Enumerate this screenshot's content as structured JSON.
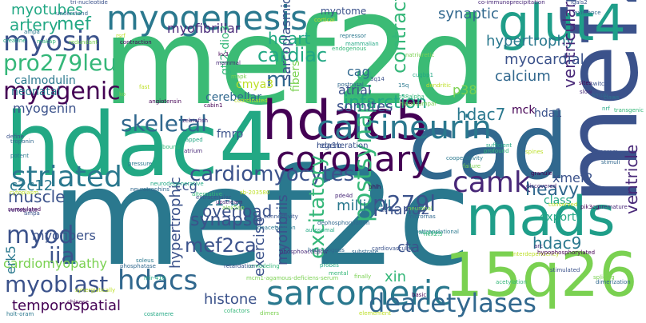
{
  "words": [
    {
      "text": "mef2d",
      "color": "#3bbb75"
    },
    {
      "text": "mef2c",
      "color": "#2a788e"
    },
    {
      "text": "mef2b",
      "color": "#3b528b"
    },
    {
      "text": "hdac4",
      "color": "#22a884"
    },
    {
      "text": "cad",
      "color": "#31688e"
    },
    {
      "text": "hdac5",
      "color": "#440154"
    },
    {
      "text": "myogenesis",
      "color": "#2a788e"
    },
    {
      "text": "glut4",
      "color": "#1f9e89"
    },
    {
      "text": "coronary",
      "color": "#440154"
    },
    {
      "text": "mads",
      "color": "#1f9e89"
    },
    {
      "text": "15q26",
      "color": "#7ad151"
    },
    {
      "text": "calcineurin",
      "color": "#2a788e"
    },
    {
      "text": "striated",
      "color": "#2a788e"
    },
    {
      "text": "sarcomeric",
      "color": "#2a788e"
    },
    {
      "text": "hdacs",
      "color": "#31688e"
    },
    {
      "text": "deacetylases",
      "color": "#31688e"
    },
    {
      "text": "camk",
      "color": "#482878"
    },
    {
      "text": "myosin",
      "color": "#3b528b"
    },
    {
      "text": "myogenic",
      "color": "#440154"
    },
    {
      "text": "skeletal",
      "color": "#31688e"
    },
    {
      "text": "myoblast",
      "color": "#3b528b"
    },
    {
      "text": "myod",
      "color": "#3b528b"
    },
    {
      "text": "iia",
      "color": "#3b528b"
    },
    {
      "text": "pro279leu",
      "color": "#35b779"
    },
    {
      "text": "cardiomyocytes",
      "color": "#3b528b"
    },
    {
      "text": "postsynaptic",
      "color": "#35b779"
    },
    {
      "text": "excitatory",
      "color": "#35b779"
    },
    {
      "text": "p279l",
      "color": "#3b528b"
    },
    {
      "text": "contractility",
      "color": "#35b779"
    },
    {
      "text": "hypertrophy",
      "color": "#2a788e"
    },
    {
      "text": "heart",
      "color": "#22a884"
    },
    {
      "text": "cardiac",
      "color": "#22a884"
    },
    {
      "text": "mi",
      "color": "#31688e"
    },
    {
      "text": "infarction",
      "color": "#22a884"
    },
    {
      "text": "heavy",
      "color": "#31688e"
    },
    {
      "text": "ventricular",
      "color": "#482878"
    },
    {
      "text": "ventricle",
      "color": "#482878"
    },
    {
      "text": "myotubes",
      "color": "#22a884"
    },
    {
      "text": "artery",
      "color": "#22a884"
    },
    {
      "text": "mef",
      "color": "#22a884"
    },
    {
      "text": "myofibrillar",
      "color": "#482878"
    },
    {
      "text": "synaptic",
      "color": "#31688e"
    },
    {
      "text": "mef2ca",
      "color": "#3b528b"
    },
    {
      "text": "synapse",
      "color": "#3b528b"
    },
    {
      "text": "histone",
      "color": "#3b528b"
    },
    {
      "text": "cardiomyopathy",
      "color": "#7ad151"
    },
    {
      "text": "muscle",
      "color": "#3b528b"
    },
    {
      "text": "myofibers",
      "color": "#3b528b"
    },
    {
      "text": "myogenin",
      "color": "#3b528b"
    },
    {
      "text": "hdac7",
      "color": "#2a788e"
    },
    {
      "text": "hdac9",
      "color": "#2a788e"
    },
    {
      "text": "c2c12",
      "color": "#2a788e"
    },
    {
      "text": "21-bp",
      "color": "#2a788e"
    },
    {
      "text": "millicell",
      "color": "#2a788e"
    },
    {
      "text": "cag",
      "color": "#31688e"
    },
    {
      "text": "calcium",
      "color": "#31688e"
    },
    {
      "text": "p38",
      "color": "#7ad151"
    },
    {
      "text": "myocardial",
      "color": "#3b528b"
    },
    {
      "text": "atrial",
      "color": "#3b528b"
    },
    {
      "text": "somites",
      "color": "#3b528b"
    },
    {
      "text": "overload",
      "color": "#3b528b"
    },
    {
      "text": "hand2",
      "color": "#3b528b"
    },
    {
      "text": "export",
      "color": "#22a884"
    },
    {
      "text": "class",
      "color": "#22a884"
    },
    {
      "text": "xmef2",
      "color": "#3b528b"
    },
    {
      "text": "temporospatial",
      "color": "#440154"
    },
    {
      "text": "hypertrophic",
      "color": "#3b528b"
    },
    {
      "text": "exercise",
      "color": "#3b528b"
    },
    {
      "text": "myofibrils",
      "color": "#3b528b"
    },
    {
      "text": "gtl2-dio3",
      "color": "#35b779"
    },
    {
      "text": "sarcoplasmic",
      "color": "#3b528b"
    },
    {
      "text": "fibers",
      "color": "#7ad151"
    },
    {
      "text": "cmya3",
      "color": "#bddf26"
    },
    {
      "text": "cerebellar",
      "color": "#31688e"
    },
    {
      "text": "calmodulin",
      "color": "#2a788e"
    },
    {
      "text": "neonatal",
      "color": "#2a788e"
    },
    {
      "text": "erk5",
      "color": "#2a788e"
    },
    {
      "text": "ccg",
      "color": "#3b528b"
    },
    {
      "text": "cta",
      "color": "#3b528b"
    },
    {
      "text": "mck",
      "color": "#440154"
    },
    {
      "text": "hda1",
      "color": "#3b528b"
    },
    {
      "text": "fmrp",
      "color": "#3b528b"
    },
    {
      "text": "xin",
      "color": "#35b779"
    },
    {
      "text": "myotome",
      "color": "#3b528b"
    },
    {
      "text": "regeneration",
      "color": "#3b528b"
    },
    {
      "text": "hda1b",
      "color": "#3b528b"
    }
  ],
  "small_words": [
    "tri-nucleotide",
    "understand",
    "ampa",
    "creatine",
    "makap",
    "redundant",
    "rsrf",
    "contraction",
    "co-immunoprecipitation",
    "igals2",
    "existence",
    "repressor",
    "mammalian",
    "endogenous",
    "natriuretic",
    "cortical",
    "kv3",
    "mammal",
    "3q14",
    "postnatal",
    "15q",
    "cugbp1",
    "p38alpha",
    "hippocampal",
    "dendritic",
    "sites",
    "slow",
    "switch",
    "ampk",
    "claws",
    "nrf",
    "transgenic",
    "mapk",
    "coordinated",
    "cabin1",
    "zebrafish",
    "define",
    "troponin",
    "potent",
    "mapped",
    "bound",
    "ko",
    "fast",
    "angiotensin",
    "atrium",
    "extracellular",
    "neurotrophins",
    "cooperativity",
    "sufficient",
    "profound",
    "failure",
    "spines",
    "granule",
    "discovered",
    "program",
    "stimuli",
    "pressure",
    "neurodegenerative",
    "alternative",
    "alox5ap",
    "sb-203580",
    "bhlh",
    "pde4d",
    "2c",
    "micrornas",
    "posttranslational",
    "nucleus",
    "acetylation",
    "splicing",
    "conserved",
    "pik3cg",
    "premature",
    "connectivity",
    "dephosphorylation",
    "deacetylation",
    "autosomal",
    "nkx2.5",
    "neuronal",
    "interdependency",
    "hypophosphorylated",
    "phosphoacceptor",
    "cardiovascular",
    "substrate",
    "extent",
    "probes",
    "mental",
    "finally",
    "cytoplasm",
    "sumoylated",
    "vertebrate",
    "ampa",
    "phosphatase",
    "soleus",
    "mir-410",
    "remodeling",
    "mcm1-agamous-deficiens-serum",
    "synergistically",
    "chinese",
    "upstream",
    "retardation",
    "heterologous",
    "holt-oram",
    "costamere",
    "cofactors",
    "dimers",
    "elemement",
    "basic",
    "arc",
    "stimulated",
    "dimerization"
  ]
}
